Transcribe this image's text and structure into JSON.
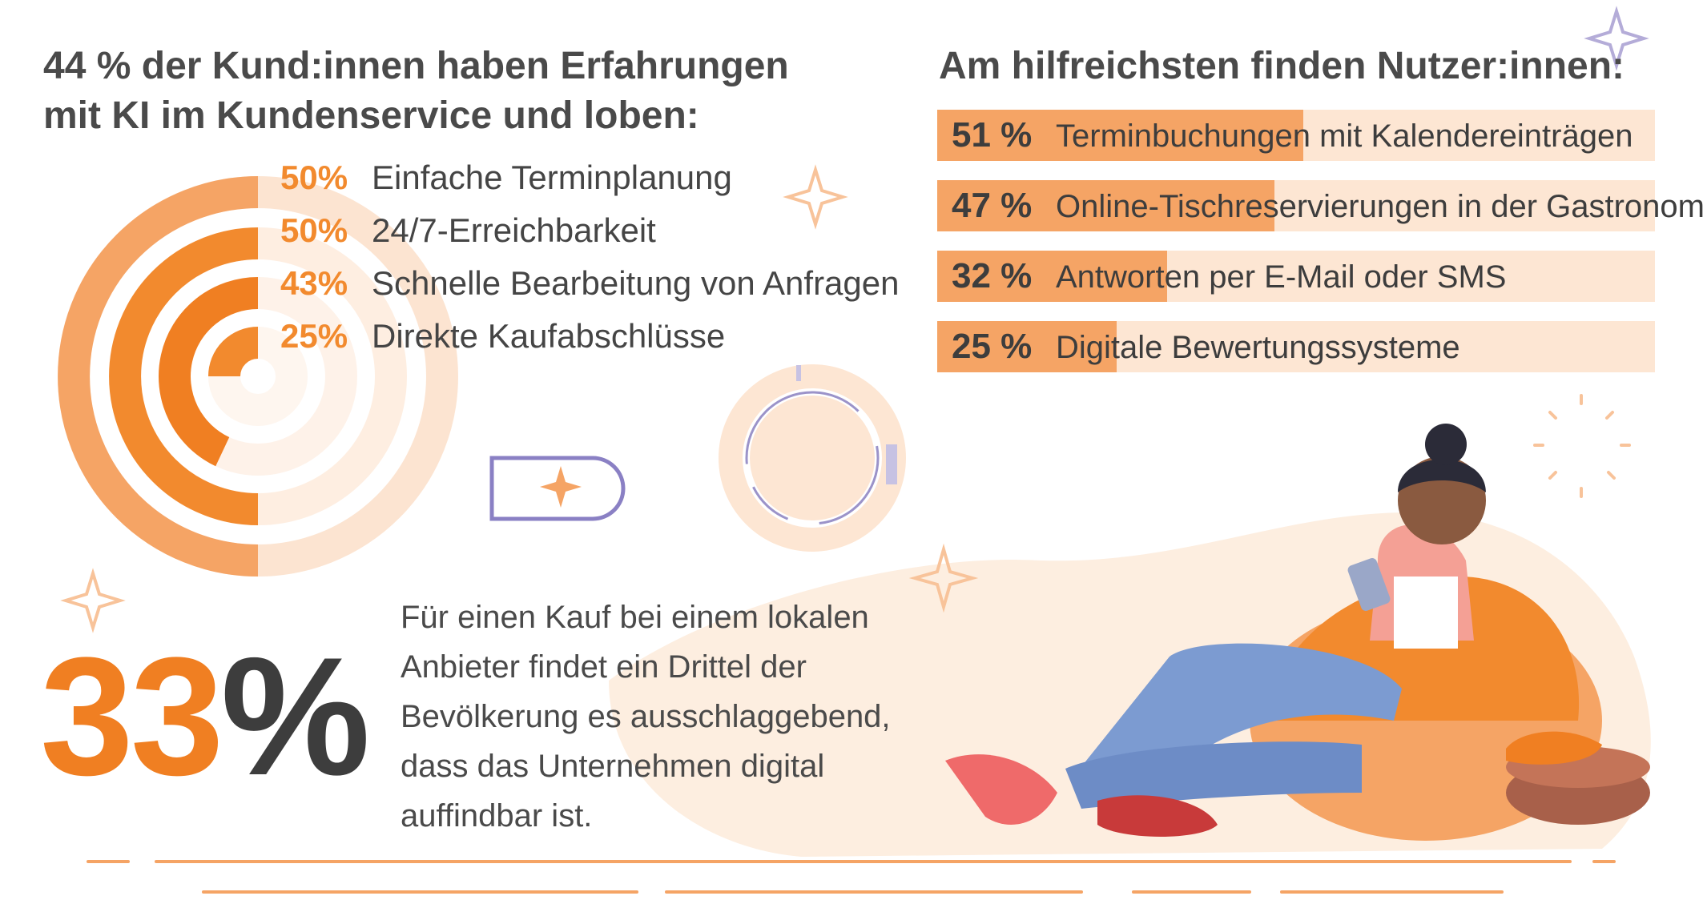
{
  "left": {
    "title_line1": "44 % der Kund:innen haben Erfahrungen",
    "title_line2": "mit KI im Kundenservice und loben:"
  },
  "right": {
    "title": "Am hilfreichsten finden Nutzer:innen:"
  },
  "highlight": {
    "number": "33",
    "percent_sign": "%",
    "text": "Für einen Kauf bei einem lokalen Anbieter findet ein Drittel der Bevölkerung es ausschlaggebend, dass das Unternehmen digital auffindbar ist."
  },
  "colors": {
    "orange": "#f07f22",
    "light_orange": "#f5a465",
    "pale_orange": "#fde6d3",
    "text": "#3d3d3d",
    "accent_purple": "#9b93c9"
  },
  "chart_data": [
    {
      "type": "radial-bar",
      "max": 100,
      "series": [
        {
          "label": "Einfache Terminplanung",
          "value": 50,
          "pct_label": "50%"
        },
        {
          "label": "24/7-Erreichbarkeit",
          "value": 50,
          "pct_label": "50%"
        },
        {
          "label": "Schnelle Bearbeitung von Anfragen",
          "value": 43,
          "pct_label": "43%"
        },
        {
          "label": "Direkte Kaufabschlüsse",
          "value": 25,
          "pct_label": "25%"
        }
      ]
    },
    {
      "type": "bar",
      "max": 100,
      "series": [
        {
          "label": "Terminbuchungen mit Kalendereinträgen",
          "value": 51,
          "pct_label": "51 %"
        },
        {
          "label": "Online-Tischreservierungen in der Gastronomie",
          "value": 47,
          "pct_label": "47 %"
        },
        {
          "label": "Antworten per E-Mail oder SMS",
          "value": 32,
          "pct_label": "32 %"
        },
        {
          "label": "Digitale Bewertungssysteme",
          "value": 25,
          "pct_label": "25 %"
        }
      ]
    }
  ]
}
